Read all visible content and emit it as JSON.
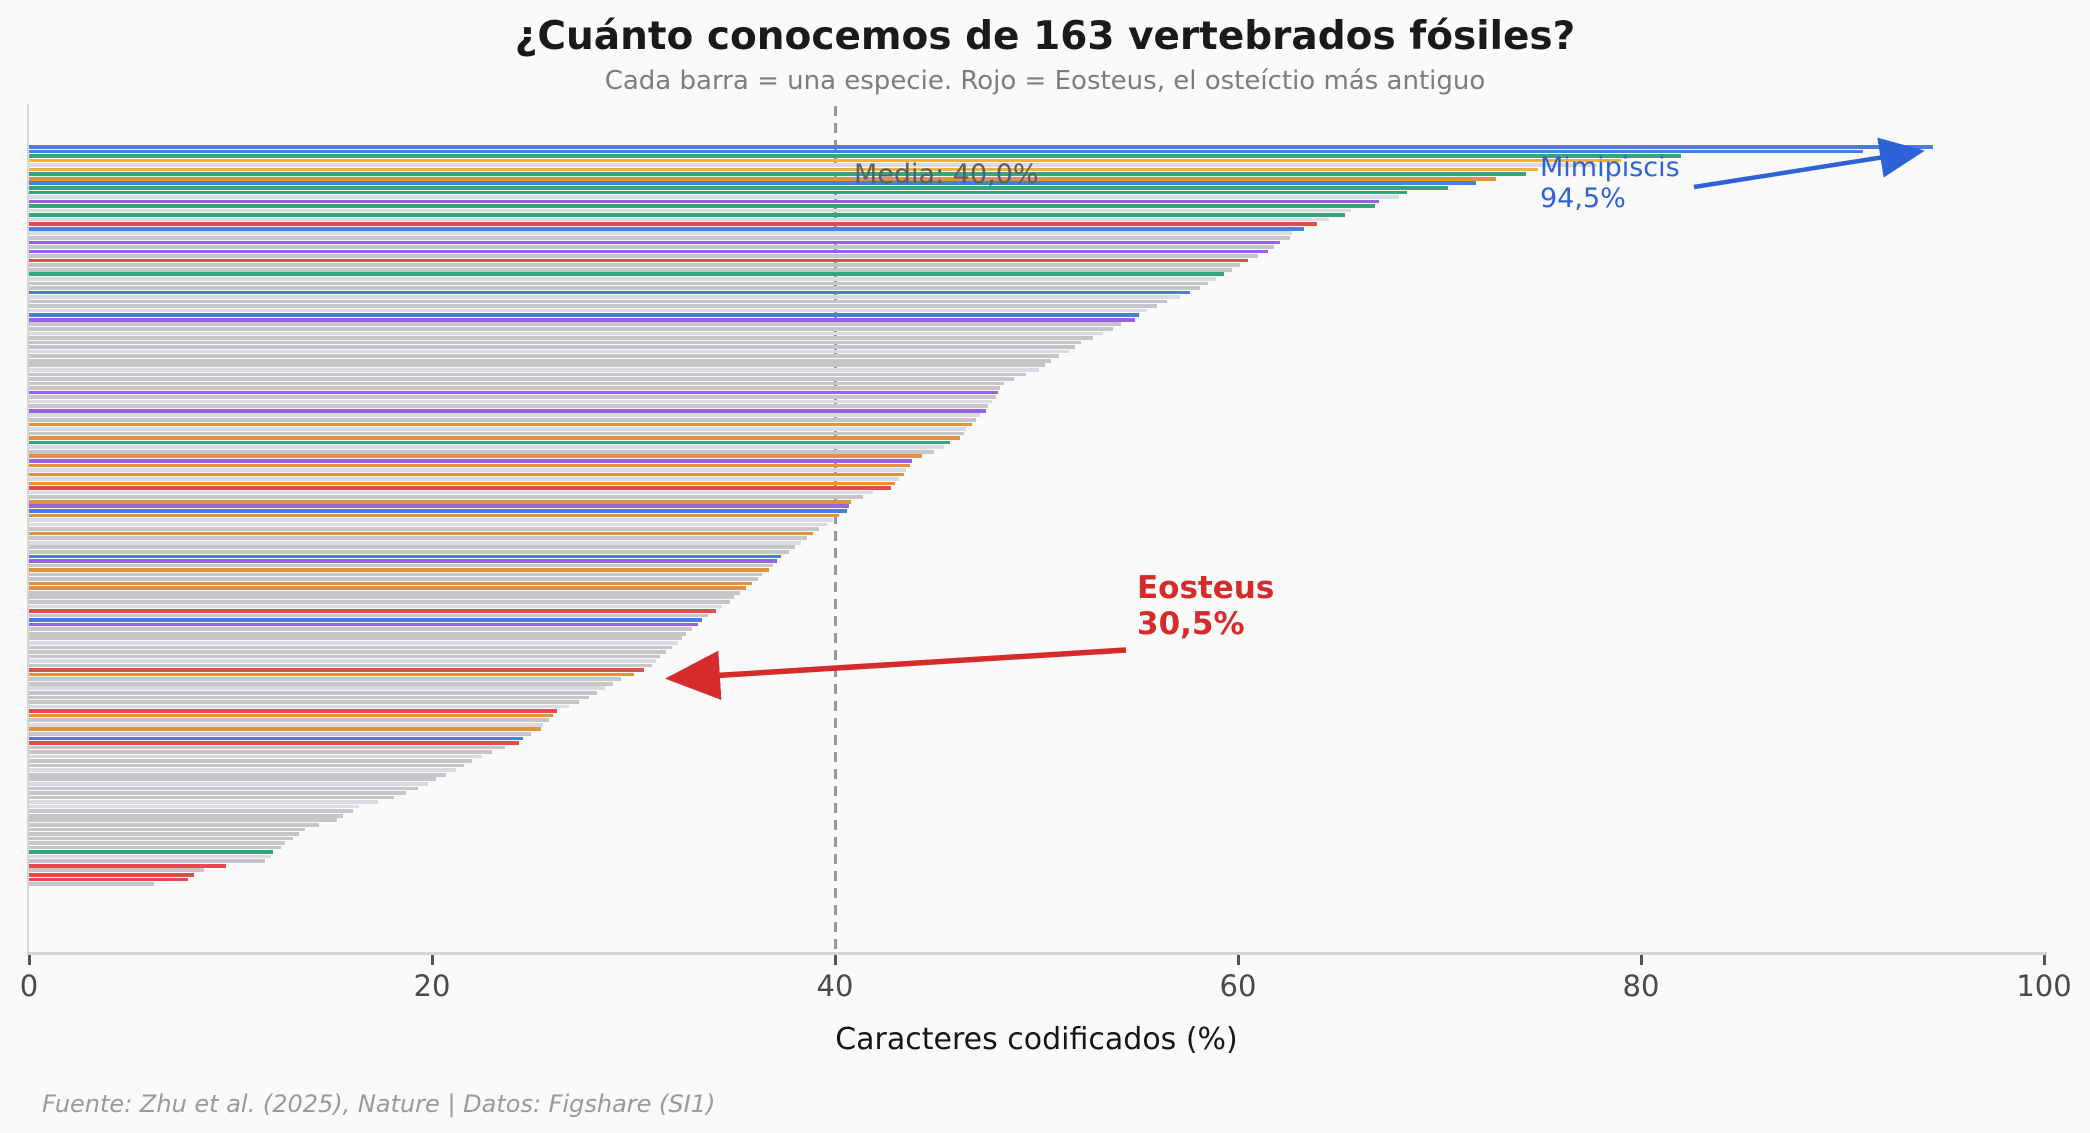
{
  "title": "¿Cuánto conocemos de 163 vertebrados fósiles?",
  "subtitle": "Cada barra = una especie. Rojo = Eosteus, el osteíctio más antiguo",
  "footer": "Fuente: Zhu et al. (2025), Nature | Datos: Figshare (SI1)",
  "mean_line": {
    "label": "Media: 40,0%",
    "value": 40.0,
    "color": "#999999",
    "label_color": "#5a5f63"
  },
  "annotations": {
    "mimipiscis": {
      "name": "Mimipiscis",
      "value_label": "94,5%",
      "value": 94.5,
      "color": "#2e63d8"
    },
    "eosteus": {
      "name": "Eosteus",
      "value_label": "30,5%",
      "value": 30.5,
      "color": "#d62b2b"
    }
  },
  "xaxis": {
    "label": "Caracteres codificados (%)",
    "ticks": [
      "0",
      "20",
      "40",
      "60",
      "80",
      "100"
    ],
    "range": [
      0,
      100
    ]
  },
  "chart_data": {
    "type": "bar",
    "orientation": "horizontal",
    "title": "¿Cuánto conocemos de 163 vertebrados fósiles?",
    "xlabel": "Caracteres codificados (%)",
    "xlim": [
      0,
      100
    ],
    "grid": false,
    "n_species": 163,
    "mean": 40.0,
    "highlight_top_index": 0,
    "highlight_eosteus_index": 115,
    "palette": {
      "blue": "#4a7de2",
      "green": "#35a57f",
      "gold": "#f0b13c",
      "orange": "#e0923c",
      "red": "#e04b4b",
      "purple": "#9763e3",
      "gray": "#c6c6c8",
      "lightgray": "#d9dbe1"
    },
    "bars": [
      [
        94.5,
        "blue"
      ],
      [
        91.0,
        "blue"
      ],
      [
        82.0,
        "green"
      ],
      [
        79.0,
        "gold"
      ],
      [
        77.8,
        "lightgray"
      ],
      [
        74.9,
        "gold"
      ],
      [
        74.3,
        "green"
      ],
      [
        72.8,
        "orange"
      ],
      [
        71.8,
        "blue"
      ],
      [
        70.4,
        "green"
      ],
      [
        68.4,
        "green"
      ],
      [
        68.0,
        "lightgray"
      ],
      [
        67.0,
        "purple"
      ],
      [
        66.8,
        "green"
      ],
      [
        65.6,
        "lightgray"
      ],
      [
        65.3,
        "green"
      ],
      [
        64.5,
        "lightgray"
      ],
      [
        63.9,
        "red"
      ],
      [
        63.3,
        "blue"
      ],
      [
        62.7,
        "lightgray"
      ],
      [
        62.6,
        "gray"
      ],
      [
        62.1,
        "purple"
      ],
      [
        61.8,
        "gray"
      ],
      [
        61.5,
        "purple"
      ],
      [
        61.0,
        "gray"
      ],
      [
        60.5,
        "red"
      ],
      [
        60.1,
        "gray"
      ],
      [
        59.7,
        "gray"
      ],
      [
        59.3,
        "green"
      ],
      [
        58.9,
        "lightgray"
      ],
      [
        58.5,
        "gray"
      ],
      [
        58.1,
        "gray"
      ],
      [
        57.6,
        "blue"
      ],
      [
        57.1,
        "lightgray"
      ],
      [
        56.5,
        "gray"
      ],
      [
        56.0,
        "gray"
      ],
      [
        55.5,
        "lightgray"
      ],
      [
        55.1,
        "blue"
      ],
      [
        54.9,
        "purple"
      ],
      [
        54.2,
        "gray"
      ],
      [
        53.8,
        "gray"
      ],
      [
        53.3,
        "lightgray"
      ],
      [
        52.8,
        "gray"
      ],
      [
        52.2,
        "gray"
      ],
      [
        51.9,
        "gray"
      ],
      [
        51.6,
        "lightgray"
      ],
      [
        51.1,
        "gray"
      ],
      [
        50.7,
        "gray"
      ],
      [
        50.4,
        "gray"
      ],
      [
        50.1,
        "lightgray"
      ],
      [
        49.5,
        "gray"
      ],
      [
        48.9,
        "gray"
      ],
      [
        48.4,
        "gray"
      ],
      [
        48.2,
        "gray"
      ],
      [
        48.1,
        "purple"
      ],
      [
        48.0,
        "gray"
      ],
      [
        47.8,
        "lightgray"
      ],
      [
        47.6,
        "gray"
      ],
      [
        47.5,
        "purple"
      ],
      [
        47.2,
        "lightgray"
      ],
      [
        47.0,
        "gray"
      ],
      [
        46.8,
        "orange"
      ],
      [
        46.5,
        "lightgray"
      ],
      [
        46.4,
        "gray"
      ],
      [
        46.2,
        "orange"
      ],
      [
        45.7,
        "green"
      ],
      [
        45.4,
        "lightgray"
      ],
      [
        44.9,
        "gray"
      ],
      [
        44.3,
        "orange"
      ],
      [
        43.8,
        "purple"
      ],
      [
        43.7,
        "orange"
      ],
      [
        43.5,
        "lightgray"
      ],
      [
        43.4,
        "orange"
      ],
      [
        43.2,
        "lightgray"
      ],
      [
        43.0,
        "orange"
      ],
      [
        42.8,
        "red"
      ],
      [
        41.9,
        "lightgray"
      ],
      [
        41.4,
        "gray"
      ],
      [
        40.8,
        "orange"
      ],
      [
        40.7,
        "purple"
      ],
      [
        40.6,
        "blue"
      ],
      [
        40.2,
        "orange"
      ],
      [
        39.9,
        "lightgray"
      ],
      [
        39.6,
        "lightgray"
      ],
      [
        39.2,
        "gray"
      ],
      [
        38.9,
        "orange"
      ],
      [
        38.6,
        "gray"
      ],
      [
        38.3,
        "lightgray"
      ],
      [
        38.0,
        "gray"
      ],
      [
        37.7,
        "gray"
      ],
      [
        37.3,
        "blue"
      ],
      [
        37.1,
        "purple"
      ],
      [
        36.9,
        "gray"
      ],
      [
        36.7,
        "orange"
      ],
      [
        36.4,
        "gray"
      ],
      [
        36.2,
        "gray"
      ],
      [
        35.9,
        "orange"
      ],
      [
        35.6,
        "orange"
      ],
      [
        35.3,
        "gray"
      ],
      [
        35.0,
        "gray"
      ],
      [
        34.8,
        "gray"
      ],
      [
        34.4,
        "lightgray"
      ],
      [
        34.1,
        "red"
      ],
      [
        33.7,
        "gray"
      ],
      [
        33.4,
        "blue"
      ],
      [
        33.2,
        "purple"
      ],
      [
        32.9,
        "gray"
      ],
      [
        32.6,
        "gray"
      ],
      [
        32.4,
        "gray"
      ],
      [
        32.2,
        "lightgray"
      ],
      [
        31.9,
        "gray"
      ],
      [
        31.6,
        "gray"
      ],
      [
        31.3,
        "gray"
      ],
      [
        31.1,
        "lightgray"
      ],
      [
        30.9,
        "gray"
      ],
      [
        30.5,
        "red"
      ],
      [
        30.0,
        "orange"
      ],
      [
        29.4,
        "gray"
      ],
      [
        29.0,
        "gray"
      ],
      [
        28.6,
        "lightgray"
      ],
      [
        28.2,
        "gray"
      ],
      [
        27.8,
        "gray"
      ],
      [
        27.3,
        "gray"
      ],
      [
        26.8,
        "lightgray"
      ],
      [
        26.2,
        "red"
      ],
      [
        26.0,
        "orange"
      ],
      [
        25.8,
        "gray"
      ],
      [
        25.5,
        "lightgray"
      ],
      [
        25.4,
        "orange"
      ],
      [
        24.9,
        "gray"
      ],
      [
        24.5,
        "blue"
      ],
      [
        24.3,
        "red"
      ],
      [
        23.6,
        "gray"
      ],
      [
        23.0,
        "gray"
      ],
      [
        22.5,
        "lightgray"
      ],
      [
        22.0,
        "gray"
      ],
      [
        21.6,
        "gray"
      ],
      [
        21.2,
        "lightgray"
      ],
      [
        20.7,
        "gray"
      ],
      [
        20.2,
        "gray"
      ],
      [
        19.8,
        "lightgray"
      ],
      [
        19.3,
        "gray"
      ],
      [
        18.7,
        "gray"
      ],
      [
        18.1,
        "gray"
      ],
      [
        17.3,
        "lightgray"
      ],
      [
        16.4,
        "lightgray"
      ],
      [
        16.1,
        "gray"
      ],
      [
        15.6,
        "gray"
      ],
      [
        15.3,
        "gray"
      ],
      [
        14.4,
        "gray"
      ],
      [
        13.7,
        "gray"
      ],
      [
        13.4,
        "gray"
      ],
      [
        13.1,
        "gray"
      ],
      [
        12.7,
        "gray"
      ],
      [
        12.5,
        "gray"
      ],
      [
        12.1,
        "green"
      ],
      [
        12.0,
        "lightgray"
      ],
      [
        11.7,
        "gray"
      ],
      [
        9.8,
        "red"
      ],
      [
        8.7,
        "gray"
      ],
      [
        8.2,
        "red"
      ],
      [
        7.9,
        "red"
      ],
      [
        6.2,
        "gray"
      ]
    ]
  }
}
